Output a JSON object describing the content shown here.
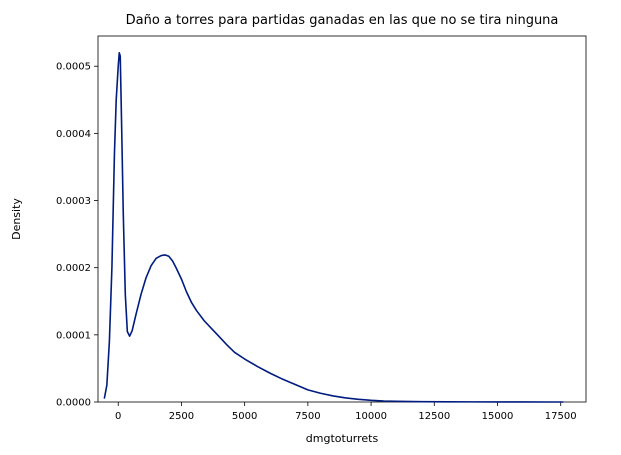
{
  "chart_data": {
    "type": "line",
    "title": "Daño a torres para partidas ganadas en las que no se tira ninguna",
    "xlabel": "dmgtoturrets",
    "ylabel": "Density",
    "xlim": [
      -800,
      18500
    ],
    "ylim": [
      0,
      0.000545
    ],
    "x_ticks": [
      0,
      2500,
      5000,
      7500,
      10000,
      12500,
      15000,
      17500
    ],
    "x_tick_labels": [
      "0",
      "2500",
      "5000",
      "7500",
      "10000",
      "12500",
      "15000",
      "17500"
    ],
    "y_ticks": [
      0,
      0.0001,
      0.0002,
      0.0003,
      0.0004,
      0.0005
    ],
    "y_tick_labels": [
      "0.0000",
      "0.0001",
      "0.0002",
      "0.0003",
      "0.0004",
      "0.0005"
    ],
    "grid": false,
    "line_color": "#001c7f",
    "series": [
      {
        "x": [
          -550,
          -450,
          -350,
          -250,
          -150,
          -80,
          0,
          40,
          80,
          130,
          200,
          280,
          360,
          450,
          550,
          700,
          900,
          1100,
          1300,
          1500,
          1700,
          1850,
          2000,
          2150,
          2300,
          2500,
          2700,
          2900,
          3100,
          3400,
          3700,
          4000,
          4300,
          4600,
          5000,
          5500,
          6000,
          6500,
          7000,
          7500,
          8000,
          8500,
          9000,
          9500,
          10000,
          10500,
          11000,
          12000,
          13000,
          14000,
          15000,
          16000,
          17000,
          17600
        ],
        "y": [
          5e-06,
          2.5e-05,
          9e-05,
          0.0002,
          0.00037,
          0.00045,
          0.0005,
          0.00052,
          0.000515,
          0.00042,
          0.00028,
          0.00016,
          0.000105,
          9.8e-05,
          0.000106,
          0.00013,
          0.00016,
          0.000185,
          0.000203,
          0.000214,
          0.000218,
          0.000219,
          0.000217,
          0.00021,
          0.000199,
          0.000183,
          0.000164,
          0.000148,
          0.000136,
          0.000121,
          0.000109,
          9.7e-05,
          8.5e-05,
          7.4e-05,
          6.4e-05,
          5.3e-05,
          4.3e-05,
          3.4e-05,
          2.6e-05,
          1.8e-05,
          1.3e-05,
          9e-06,
          6e-06,
          4e-06,
          2.5e-06,
          1.5e-06,
          1e-06,
          5e-07,
          3e-07,
          2e-07,
          1e-07,
          5e-08,
          2e-08,
          1e-08
        ]
      }
    ]
  }
}
